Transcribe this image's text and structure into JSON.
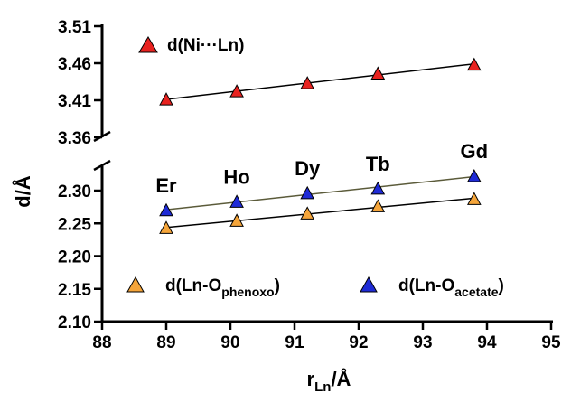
{
  "chart_data": {
    "type": "scatter",
    "x_axis": {
      "label_main": "r",
      "label_sub": "Ln",
      "label_unit": "/Å",
      "range": [
        88,
        95
      ],
      "ticks": [
        "88",
        "89",
        "90",
        "91",
        "92",
        "93",
        "94",
        "95"
      ]
    },
    "y_axis": {
      "label": "d/Å",
      "broken": true,
      "upper_segment": {
        "range": [
          3.36,
          3.51
        ],
        "ticks": [
          "3.36",
          "3.41",
          "3.46",
          "3.51"
        ]
      },
      "lower_segment": {
        "range": [
          2.1,
          2.33
        ],
        "ticks": [
          "2.10",
          "2.15",
          "2.20",
          "2.25",
          "2.30"
        ]
      }
    },
    "grid": false,
    "lanthanide_labels": [
      {
        "text": "Er",
        "x": 89.0
      },
      {
        "text": "Ho",
        "x": 90.1
      },
      {
        "text": "Dy",
        "x": 91.2
      },
      {
        "text": "Tb",
        "x": 92.3
      },
      {
        "text": "Gd",
        "x": 93.8
      }
    ],
    "series": [
      {
        "name_main": "d(Ni···Ln)",
        "name_sub": "",
        "name_tail": "",
        "segment": "upper",
        "color": "#e8221f",
        "marker": "triangle",
        "fit_line": true,
        "x": [
          89.0,
          90.1,
          91.2,
          92.3,
          93.8
        ],
        "y": [
          3.411,
          3.422,
          3.433,
          3.446,
          3.458
        ]
      },
      {
        "name_main": "d(Ln-O",
        "name_sub": "phenoxo",
        "name_tail": ")",
        "segment": "lower",
        "color": "#f5a53a",
        "marker": "triangle",
        "fit_line": true,
        "x": [
          89.0,
          90.1,
          91.2,
          92.3,
          93.8
        ],
        "y": [
          2.243,
          2.254,
          2.265,
          2.276,
          2.287
        ]
      },
      {
        "name_main": "d(Ln-O",
        "name_sub": "acetate",
        "name_tail": ")",
        "segment": "lower",
        "color": "#1f2bd6",
        "marker": "triangle",
        "fit_line": true,
        "x": [
          89.0,
          90.1,
          91.2,
          92.3,
          93.8
        ],
        "y": [
          2.27,
          2.283,
          2.296,
          2.303,
          2.322
        ]
      }
    ]
  }
}
